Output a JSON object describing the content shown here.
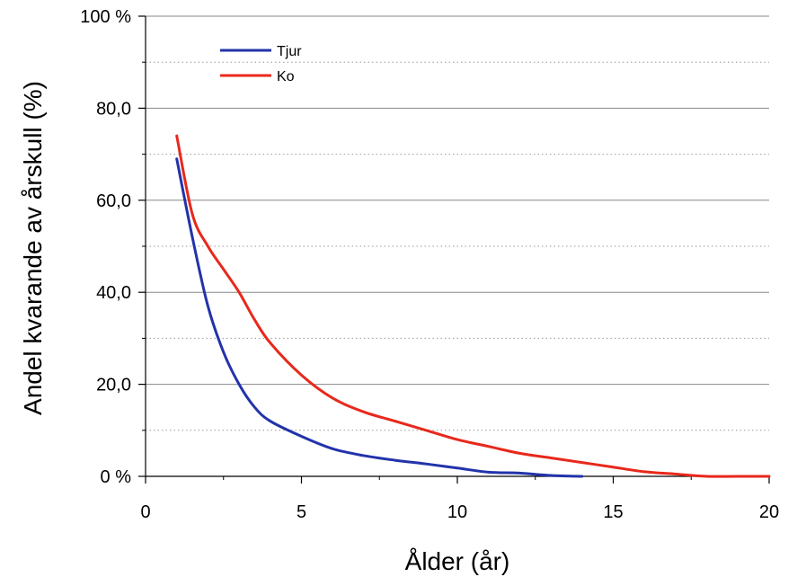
{
  "chart_data": {
    "type": "line",
    "title": "",
    "xlabel": "Ålder (år)",
    "ylabel": "Andel kvarande av årskull (%)",
    "xlim": [
      0,
      20
    ],
    "ylim": [
      0,
      100
    ],
    "x_ticks": [
      0,
      5,
      10,
      15,
      20
    ],
    "x_tick_labels": [
      "0",
      "5",
      "10",
      "15",
      "20"
    ],
    "y_ticks": [
      0,
      20,
      40,
      60,
      80,
      100
    ],
    "y_tick_labels": [
      "0 %",
      "20,0",
      "40,0",
      "60,0",
      "80,0",
      "100 %"
    ],
    "grid": "horizontal (solid major, dotted minor)",
    "legend_position": "top-left",
    "series": [
      {
        "name": "Tjur",
        "color": "#2233aa",
        "x": [
          1,
          1.5,
          2,
          2.5,
          3,
          3.5,
          4,
          5,
          6,
          7,
          8,
          9,
          10,
          11,
          12,
          13,
          14
        ],
        "y": [
          69,
          52,
          37,
          27,
          20,
          15,
          12,
          8.7,
          6,
          4.5,
          3.5,
          2.7,
          1.8,
          0.9,
          0.7,
          0.2,
          0
        ]
      },
      {
        "name": "Ko",
        "color": "#e8281c",
        "x": [
          1,
          1.5,
          2,
          2.5,
          3,
          3.5,
          4,
          5,
          6,
          7,
          8,
          9,
          10,
          11,
          12,
          13,
          14,
          15,
          16,
          17,
          18,
          19,
          20
        ],
        "y": [
          74,
          57,
          50,
          45,
          40,
          34,
          29,
          22,
          17,
          14,
          12,
          10,
          8,
          6.5,
          5,
          4,
          3,
          2,
          1,
          0.5,
          0,
          0,
          0
        ]
      }
    ]
  }
}
